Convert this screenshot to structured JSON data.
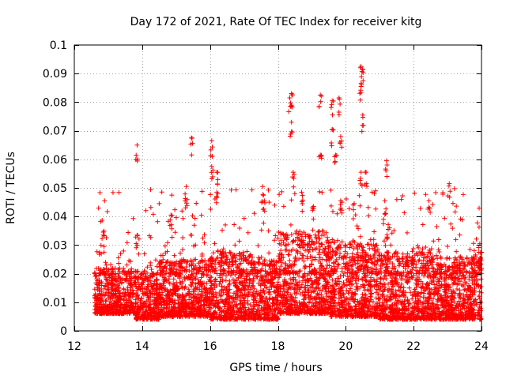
{
  "chart_data": {
    "type": "scatter",
    "title": "Day 172 of 2021, Rate Of TEC Index for receiver kitg",
    "xlabel": "GPS time / hours",
    "ylabel": "ROTI / TECUs",
    "xlim": [
      12,
      24
    ],
    "ylim": [
      0,
      0.1
    ],
    "xticks": [
      12,
      14,
      16,
      18,
      20,
      22,
      24
    ],
    "xtick_labels": [
      "12",
      "14",
      "16",
      "18",
      "20",
      "22",
      "24"
    ],
    "yticks": [
      0,
      0.01,
      0.02,
      0.03,
      0.04,
      0.05,
      0.06,
      0.07,
      0.08,
      0.09,
      0.1
    ],
    "ytick_labels": [
      "0",
      "0.01",
      "0.02",
      "0.03",
      "0.04",
      "0.05",
      "0.06",
      "0.07",
      "0.08",
      "0.09",
      "0.1"
    ],
    "grid": true,
    "marker": "+",
    "color": "#ff0000",
    "notable_points": [
      [
        13.85,
        0.065
      ],
      [
        15.45,
        0.0675
      ],
      [
        16.05,
        0.0665
      ],
      [
        16.05,
        0.0575
      ],
      [
        18.35,
        0.0815
      ],
      [
        18.4,
        0.083
      ],
      [
        18.4,
        0.073
      ],
      [
        19.25,
        0.0825
      ],
      [
        19.6,
        0.0805
      ],
      [
        19.8,
        0.0815
      ],
      [
        19.6,
        0.0705
      ],
      [
        19.85,
        0.068
      ],
      [
        20.45,
        0.0925
      ],
      [
        20.5,
        0.0915
      ],
      [
        20.45,
        0.0855
      ],
      [
        20.5,
        0.0755
      ],
      [
        21.2,
        0.0595
      ],
      [
        21.15,
        0.0455
      ],
      [
        22.45,
        0.0455
      ],
      [
        23.05,
        0.0515
      ],
      [
        14.85,
        0.0405
      ],
      [
        15.3,
        0.0505
      ],
      [
        17.55,
        0.0505
      ],
      [
        18.45,
        0.0555
      ],
      [
        19.25,
        0.0615
      ],
      [
        19.7,
        0.0615
      ],
      [
        20.45,
        0.0555
      ],
      [
        20.6,
        0.0555
      ],
      [
        16.2,
        0.0555
      ],
      [
        16.2,
        0.0485
      ],
      [
        13.85,
        0.0335
      ],
      [
        12.85,
        0.0335
      ],
      [
        23.95,
        0.0305
      ],
      [
        24.0,
        0.0275
      ],
      [
        17.6,
        0.0455
      ],
      [
        18.7,
        0.0485
      ],
      [
        19.05,
        0.0435
      ],
      [
        19.85,
        0.0455
      ],
      [
        20.25,
        0.0445
      ],
      [
        21.25,
        0.0355
      ]
    ],
    "dense_segments": [
      [
        12.6,
        13.8,
        0.006,
        0.022
      ],
      [
        13.8,
        14.5,
        0.004,
        0.02
      ],
      [
        14.5,
        16.0,
        0.005,
        0.025
      ],
      [
        16.0,
        17.2,
        0.004,
        0.028
      ],
      [
        17.2,
        18.0,
        0.004,
        0.025
      ],
      [
        18.0,
        19.5,
        0.006,
        0.035
      ],
      [
        19.5,
        21.0,
        0.005,
        0.032
      ],
      [
        21.0,
        22.5,
        0.004,
        0.028
      ],
      [
        22.5,
        24.0,
        0.004,
        0.026
      ]
    ],
    "scatter_density": 5000
  }
}
